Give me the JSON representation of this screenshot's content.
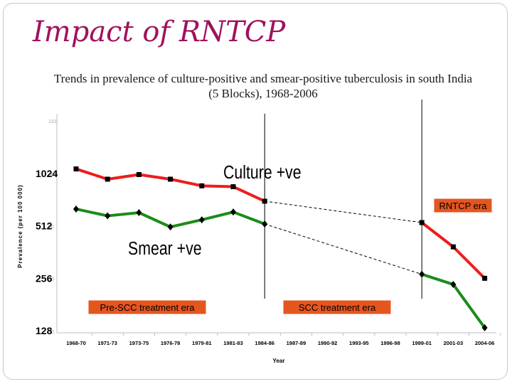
{
  "slide": {
    "title": "Impact of RNTCP",
    "subtitle_line1": "Trends in prevalence of culture-positive and smear-positive tuberculosis in south India",
    "subtitle_line2": "(5 Blocks), 1968-2006"
  },
  "chart_data": {
    "type": "line",
    "xlabel": "Year",
    "ylabel": "Prevalence (per 100 000)",
    "y_scale": "log2",
    "ylim": [
      128,
      2048
    ],
    "yticks": [
      1024,
      512,
      256,
      128
    ],
    "faint_yticks": [
      "110",
      "100",
      "90",
      "80",
      "70"
    ],
    "categories": [
      "1968-70",
      "1971-73",
      "1973-75",
      "1976-78",
      "1979-81",
      "1981-83",
      "1984-86",
      "1987-89",
      "1990-92",
      "1993-95",
      "1996-98",
      "1999-01",
      "2001-03",
      "2004-06"
    ],
    "series": [
      {
        "name": "Culture +ve",
        "color": "#ee1c1c",
        "marker": "square",
        "values": [
          1088,
          950,
          1010,
          950,
          870,
          860,
          710,
          null,
          null,
          null,
          null,
          535,
          388,
          256
        ]
      },
      {
        "name": "Smear +ve",
        "color": "#1a8c1a",
        "marker": "diamond",
        "values": [
          640,
          585,
          610,
          505,
          555,
          615,
          525,
          null,
          null,
          null,
          null,
          270,
          236,
          133
        ]
      }
    ],
    "gap_style": "dashed",
    "era_dividers": [
      "1984-86",
      "1999-01"
    ],
    "annotations": {
      "pre_scc": "Pre-SCC treatment era",
      "scc": "SCC treatment era",
      "rntcp": "RNTCP era"
    }
  }
}
